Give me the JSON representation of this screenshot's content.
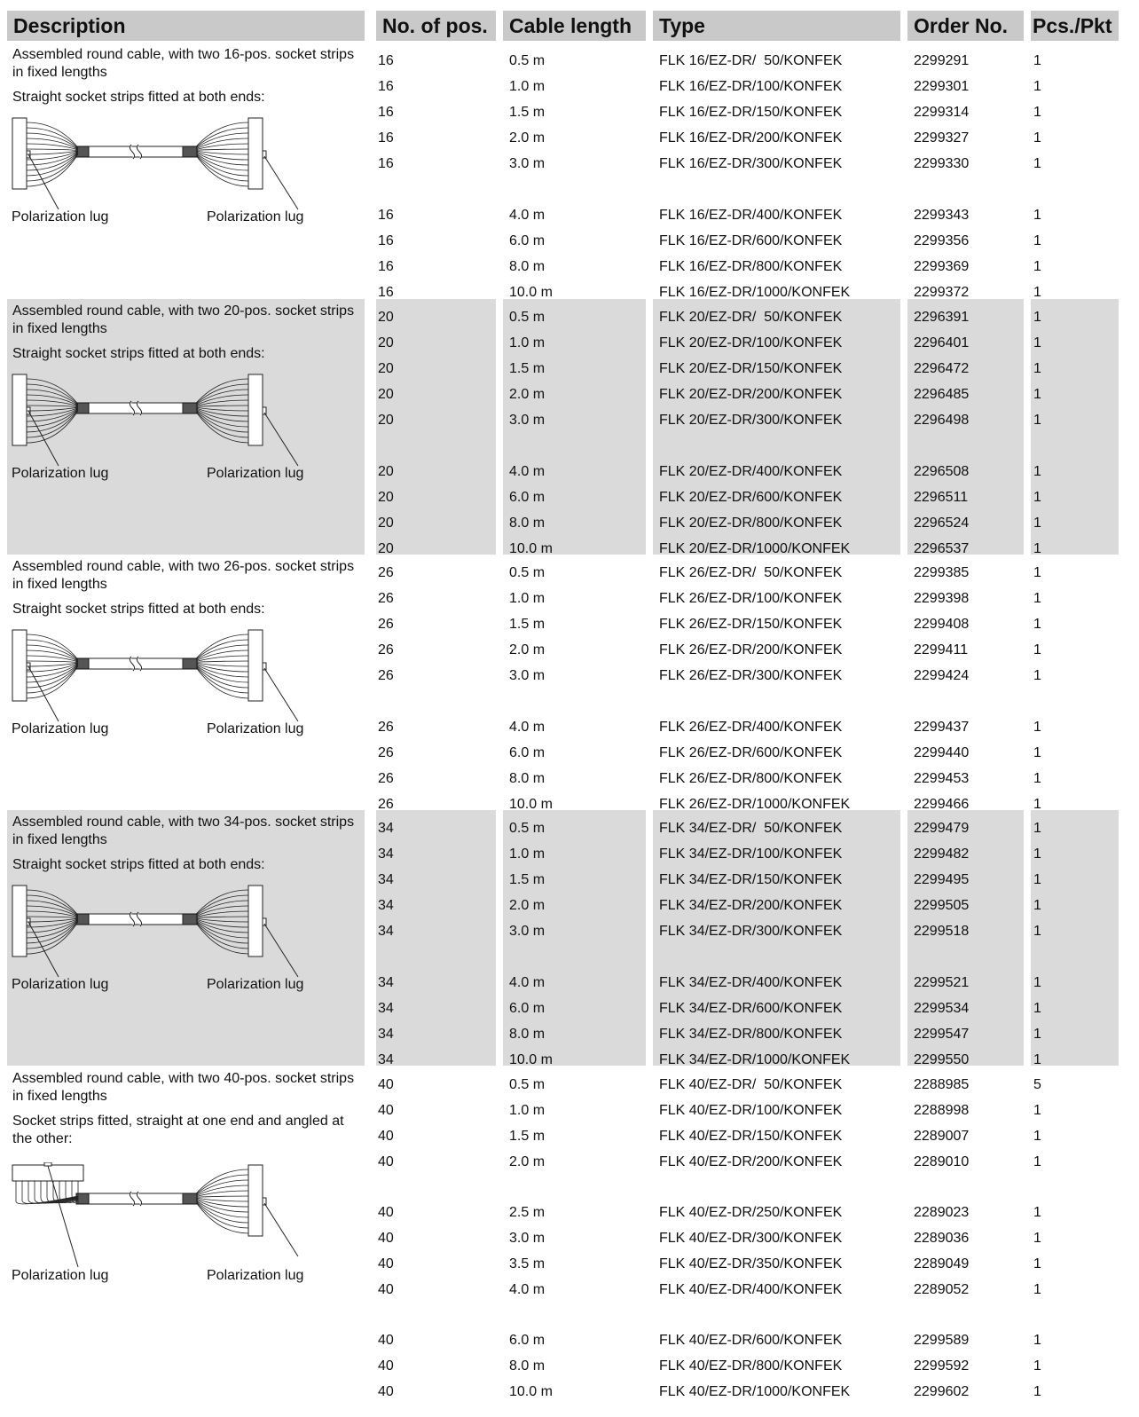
{
  "headers": [
    "Description",
    "No. of pos.",
    "Cable length",
    "Type",
    "Order No.",
    "Pcs./Pkt"
  ],
  "groups": [
    {
      "description_line1": "Assembled round cable, with two 16-pos. socket strips in fixed lengths",
      "description_line2": "Straight socket strips fitted at both ends:",
      "lug_left": "Polarization lug",
      "lug_right": "Polarization lug",
      "shaded": false,
      "angled": false,
      "rows": [
        {
          "pos": "16",
          "length": "0.5 m",
          "type": "FLK 16/EZ-DR/  50/KONFEK",
          "order": "2299291",
          "pcs": "1"
        },
        {
          "pos": "16",
          "length": "1.0 m",
          "type": "FLK 16/EZ-DR/100/KONFEK",
          "order": "2299301",
          "pcs": "1"
        },
        {
          "pos": "16",
          "length": "1.5 m",
          "type": "FLK 16/EZ-DR/150/KONFEK",
          "order": "2299314",
          "pcs": "1"
        },
        {
          "pos": "16",
          "length": "2.0 m",
          "type": "FLK 16/EZ-DR/200/KONFEK",
          "order": "2299327",
          "pcs": "1"
        },
        {
          "pos": "16",
          "length": "3.0 m",
          "type": "FLK 16/EZ-DR/300/KONFEK",
          "order": "2299330",
          "pcs": "1"
        },
        {
          "pos": "16",
          "length": "4.0 m",
          "type": "FLK 16/EZ-DR/400/KONFEK",
          "order": "2299343",
          "pcs": "1"
        },
        {
          "pos": "16",
          "length": "6.0 m",
          "type": "FLK 16/EZ-DR/600/KONFEK",
          "order": "2299356",
          "pcs": "1"
        },
        {
          "pos": "16",
          "length": "8.0 m",
          "type": "FLK 16/EZ-DR/800/KONFEK",
          "order": "2299369",
          "pcs": "1"
        },
        {
          "pos": "16",
          "length": "10.0 m",
          "type": "FLK 16/EZ-DR/1000/KONFEK",
          "order": "2299372",
          "pcs": "1"
        }
      ]
    },
    {
      "description_line1": "Assembled round cable, with two 20-pos. socket strips in fixed lengths",
      "description_line2": "Straight socket strips fitted at both ends:",
      "lug_left": "Polarization lug",
      "lug_right": "Polarization lug",
      "shaded": true,
      "angled": false,
      "rows": [
        {
          "pos": "20",
          "length": "0.5 m",
          "type": "FLK 20/EZ-DR/  50/KONFEK",
          "order": "2296391",
          "pcs": "1"
        },
        {
          "pos": "20",
          "length": "1.0 m",
          "type": "FLK 20/EZ-DR/100/KONFEK",
          "order": "2296401",
          "pcs": "1"
        },
        {
          "pos": "20",
          "length": "1.5 m",
          "type": "FLK 20/EZ-DR/150/KONFEK",
          "order": "2296472",
          "pcs": "1"
        },
        {
          "pos": "20",
          "length": "2.0 m",
          "type": "FLK 20/EZ-DR/200/KONFEK",
          "order": "2296485",
          "pcs": "1"
        },
        {
          "pos": "20",
          "length": "3.0 m",
          "type": "FLK 20/EZ-DR/300/KONFEK",
          "order": "2296498",
          "pcs": "1"
        },
        {
          "pos": "20",
          "length": "4.0 m",
          "type": "FLK 20/EZ-DR/400/KONFEK",
          "order": "2296508",
          "pcs": "1"
        },
        {
          "pos": "20",
          "length": "6.0 m",
          "type": "FLK 20/EZ-DR/600/KONFEK",
          "order": "2296511",
          "pcs": "1"
        },
        {
          "pos": "20",
          "length": "8.0 m",
          "type": "FLK 20/EZ-DR/800/KONFEK",
          "order": "2296524",
          "pcs": "1"
        },
        {
          "pos": "20",
          "length": "10.0 m",
          "type": "FLK 20/EZ-DR/1000/KONFEK",
          "order": "2296537",
          "pcs": "1"
        }
      ]
    },
    {
      "description_line1": "Assembled round cable, with two 26-pos. socket strips in fixed lengths",
      "description_line2": "Straight socket strips fitted at both ends:",
      "lug_left": "Polarization lug",
      "lug_right": "Polarization lug",
      "shaded": false,
      "angled": false,
      "rows": [
        {
          "pos": "26",
          "length": "0.5 m",
          "type": "FLK 26/EZ-DR/  50/KONFEK",
          "order": "2299385",
          "pcs": "1"
        },
        {
          "pos": "26",
          "length": "1.0 m",
          "type": "FLK 26/EZ-DR/100/KONFEK",
          "order": "2299398",
          "pcs": "1"
        },
        {
          "pos": "26",
          "length": "1.5 m",
          "type": "FLK 26/EZ-DR/150/KONFEK",
          "order": "2299408",
          "pcs": "1"
        },
        {
          "pos": "26",
          "length": "2.0 m",
          "type": "FLK 26/EZ-DR/200/KONFEK",
          "order": "2299411",
          "pcs": "1"
        },
        {
          "pos": "26",
          "length": "3.0 m",
          "type": "FLK 26/EZ-DR/300/KONFEK",
          "order": "2299424",
          "pcs": "1"
        },
        {
          "pos": "26",
          "length": "4.0 m",
          "type": "FLK 26/EZ-DR/400/KONFEK",
          "order": "2299437",
          "pcs": "1"
        },
        {
          "pos": "26",
          "length": "6.0 m",
          "type": "FLK 26/EZ-DR/600/KONFEK",
          "order": "2299440",
          "pcs": "1"
        },
        {
          "pos": "26",
          "length": "8.0 m",
          "type": "FLK 26/EZ-DR/800/KONFEK",
          "order": "2299453",
          "pcs": "1"
        },
        {
          "pos": "26",
          "length": "10.0 m",
          "type": "FLK 26/EZ-DR/1000/KONFEK",
          "order": "2299466",
          "pcs": "1"
        }
      ]
    },
    {
      "description_line1": "Assembled round cable, with two 34-pos. socket strips in fixed lengths",
      "description_line2": "Straight socket strips fitted at both ends:",
      "lug_left": "Polarization lug",
      "lug_right": "Polarization lug",
      "shaded": true,
      "angled": false,
      "rows": [
        {
          "pos": "34",
          "length": "0.5 m",
          "type": "FLK 34/EZ-DR/  50/KONFEK",
          "order": "2299479",
          "pcs": "1"
        },
        {
          "pos": "34",
          "length": "1.0 m",
          "type": "FLK 34/EZ-DR/100/KONFEK",
          "order": "2299482",
          "pcs": "1"
        },
        {
          "pos": "34",
          "length": "1.5 m",
          "type": "FLK 34/EZ-DR/150/KONFEK",
          "order": "2299495",
          "pcs": "1"
        },
        {
          "pos": "34",
          "length": "2.0 m",
          "type": "FLK 34/EZ-DR/200/KONFEK",
          "order": "2299505",
          "pcs": "1"
        },
        {
          "pos": "34",
          "length": "3.0 m",
          "type": "FLK 34/EZ-DR/300/KONFEK",
          "order": "2299518",
          "pcs": "1"
        },
        {
          "pos": "34",
          "length": "4.0 m",
          "type": "FLK 34/EZ-DR/400/KONFEK",
          "order": "2299521",
          "pcs": "1"
        },
        {
          "pos": "34",
          "length": "6.0 m",
          "type": "FLK 34/EZ-DR/600/KONFEK",
          "order": "2299534",
          "pcs": "1"
        },
        {
          "pos": "34",
          "length": "8.0 m",
          "type": "FLK 34/EZ-DR/800/KONFEK",
          "order": "2299547",
          "pcs": "1"
        },
        {
          "pos": "34",
          "length": "10.0 m",
          "type": "FLK 34/EZ-DR/1000/KONFEK",
          "order": "2299550",
          "pcs": "1"
        }
      ]
    },
    {
      "description_line1": "Assembled round cable, with two 40-pos. socket strips in fixed lengths",
      "description_line2": "Socket strips fitted, straight at one end and angled at the other:",
      "lug_left": "Polarization lug",
      "lug_right": "Polarization lug",
      "shaded": false,
      "angled": true,
      "rows": [
        {
          "pos": "40",
          "length": "0.5 m",
          "type": "FLK 40/EZ-DR/  50/KONFEK",
          "order": "2288985",
          "pcs": "5"
        },
        {
          "pos": "40",
          "length": "1.0 m",
          "type": "FLK 40/EZ-DR/100/KONFEK",
          "order": "2288998",
          "pcs": "1"
        },
        {
          "pos": "40",
          "length": "1.5 m",
          "type": "FLK 40/EZ-DR/150/KONFEK",
          "order": "2289007",
          "pcs": "1"
        },
        {
          "pos": "40",
          "length": "2.0 m",
          "type": "FLK 40/EZ-DR/200/KONFEK",
          "order": "2289010",
          "pcs": "1"
        },
        {
          "pos": "40",
          "length": "2.5 m",
          "type": "FLK 40/EZ-DR/250/KONFEK",
          "order": "2289023",
          "pcs": "1"
        },
        {
          "pos": "40",
          "length": "3.0 m",
          "type": "FLK 40/EZ-DR/300/KONFEK",
          "order": "2289036",
          "pcs": "1"
        },
        {
          "pos": "40",
          "length": "3.5 m",
          "type": "FLK 40/EZ-DR/350/KONFEK",
          "order": "2289049",
          "pcs": "1"
        },
        {
          "pos": "40",
          "length": "4.0 m",
          "type": "FLK 40/EZ-DR/400/KONFEK",
          "order": "2289052",
          "pcs": "1"
        },
        {
          "pos": "40",
          "length": "6.0 m",
          "type": "FLK 40/EZ-DR/600/KONFEK",
          "order": "2299589",
          "pcs": "1"
        },
        {
          "pos": "40",
          "length": "8.0 m",
          "type": "FLK 40/EZ-DR/800/KONFEK",
          "order": "2299592",
          "pcs": "1"
        },
        {
          "pos": "40",
          "length": "10.0 m",
          "type": "FLK 40/EZ-DR/1000/KONFEK",
          "order": "2299602",
          "pcs": "1"
        }
      ]
    }
  ]
}
